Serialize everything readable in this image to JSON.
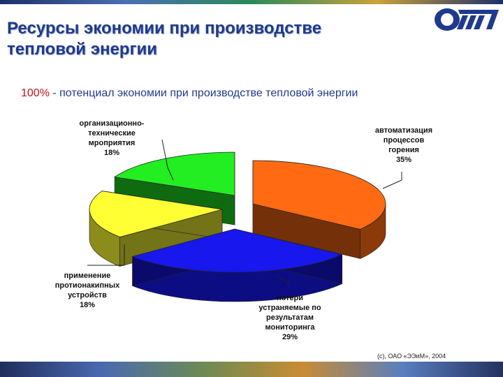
{
  "title": "Ресурсы экономии при производстве тепловой энергии",
  "subtitle": {
    "percent": "100%",
    "text": " - потенциал экономии при производстве тепловой энергии"
  },
  "copyright": "(с), ОАО «ЭЭиМ», 2004",
  "logo": {
    "icon": "company-logo"
  },
  "chart_data": {
    "type": "pie",
    "title": "100% - потенциал экономии при производстве тепловой энергии",
    "slices": [
      {
        "label_lines": [
          "автоматизация",
          "процессов",
          "горения"
        ],
        "value_label": "35%",
        "value": 35,
        "color": "#ff6a13"
      },
      {
        "label_lines": [
          "потери",
          "устраняемые по",
          "результатам",
          "мониторинга"
        ],
        "value_label": "29%",
        "value": 29,
        "color": "#1717ee"
      },
      {
        "label_lines": [
          "применение",
          "протионакипных",
          "устройств"
        ],
        "value_label": "18%",
        "value": 18,
        "color": "#ffff33"
      },
      {
        "label_lines": [
          "организационно-",
          "технические",
          "мроприятия"
        ],
        "value_label": "18%",
        "value": 18,
        "color": "#22ee22"
      }
    ]
  }
}
